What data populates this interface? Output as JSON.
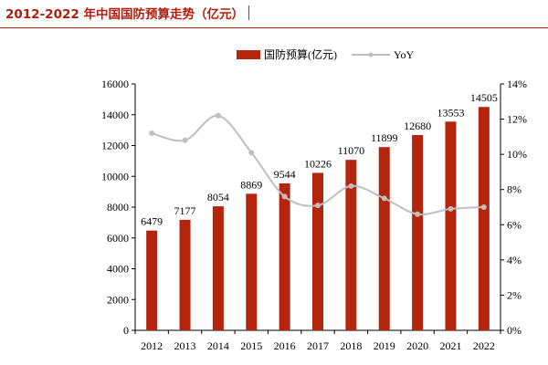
{
  "header": {
    "title": "2012-2022 年中国国防预算走势（亿元）"
  },
  "colors": {
    "bar": "#b5250e",
    "line": "#bfbfbf",
    "title": "#b01e0e",
    "axis": "#000000"
  },
  "chart_data": {
    "type": "bar",
    "categories": [
      "2012",
      "2013",
      "2014",
      "2015",
      "2016",
      "2017",
      "2018",
      "2019",
      "2020",
      "2021",
      "2022"
    ],
    "series": [
      {
        "name": "国防预算(亿元)",
        "type": "bar",
        "axis": "left",
        "values": [
          6479,
          7177,
          8054,
          8869,
          9544,
          10226,
          11070,
          11899,
          12680,
          13553,
          14505
        ]
      },
      {
        "name": "YoY",
        "type": "line",
        "axis": "right",
        "values": [
          11.2,
          10.8,
          12.2,
          10.1,
          7.6,
          7.1,
          8.2,
          7.5,
          6.6,
          6.9,
          7.0
        ]
      }
    ],
    "y_left": {
      "min": 0,
      "max": 16000,
      "step": 2000,
      "ticks": [
        "0",
        "2000",
        "4000",
        "6000",
        "8000",
        "10000",
        "12000",
        "14000",
        "16000"
      ]
    },
    "y_right": {
      "min": 0,
      "max": 14,
      "step": 2,
      "ticks": [
        "0%",
        "2%",
        "4%",
        "6%",
        "8%",
        "10%",
        "12%",
        "14%"
      ]
    },
    "data_labels": [
      "6479",
      "7177",
      "8054",
      "8869",
      "9544",
      "10226",
      "11070",
      "11899",
      "12680",
      "13553",
      "14505"
    ],
    "legend": {
      "placement": "top-center"
    },
    "grid": false
  }
}
